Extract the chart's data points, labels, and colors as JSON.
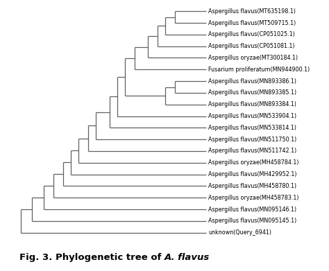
{
  "title_normal": "Fig. 3. Phylogenetic tree of ",
  "title_italic": "A. flavus",
  "background_color": "#ffffff",
  "taxa": [
    "Aspergillus flavus(MT635198.1)",
    "Aspergillus flavus(MT509715.1)",
    "Aspergillus flavus(CP051025.1)",
    "Aspergillus flavus(CP051081.1)",
    "Aspergillus oryzae(MT300184.1)",
    "Fusarium proliferatum(MN944900.1)",
    "Aspergillus flavus(MN893386.1)",
    "Aspergillus flavus(MN893385.1)",
    "Aspergillus flavus(MN893384.1)",
    "Aspergillus flavus(MN533904.1)",
    "Aspergillus flavus(MN533814.1)",
    "Aspergillus flavus(MN511750.1)",
    "Aspergillus flavus(MN511742.1)",
    "Aspergillus oryzae(MH458784.1)",
    "Aspergillus flavus(MH429952.1)",
    "Aspergillus flavus(MH458780.1)",
    "Aspergillus oryzae(MH458783.1)",
    "Aspergillus flavus(MN095146.1)",
    "Aspergillus flavus(MN095145.1)",
    "unknown(Query_6941)"
  ],
  "tree_color": "#606060",
  "label_color": "#000000",
  "label_fontsize": 5.8,
  "title_fontsize": 9.5,
  "figsize": [
    4.74,
    3.91
  ],
  "dpi": 100
}
